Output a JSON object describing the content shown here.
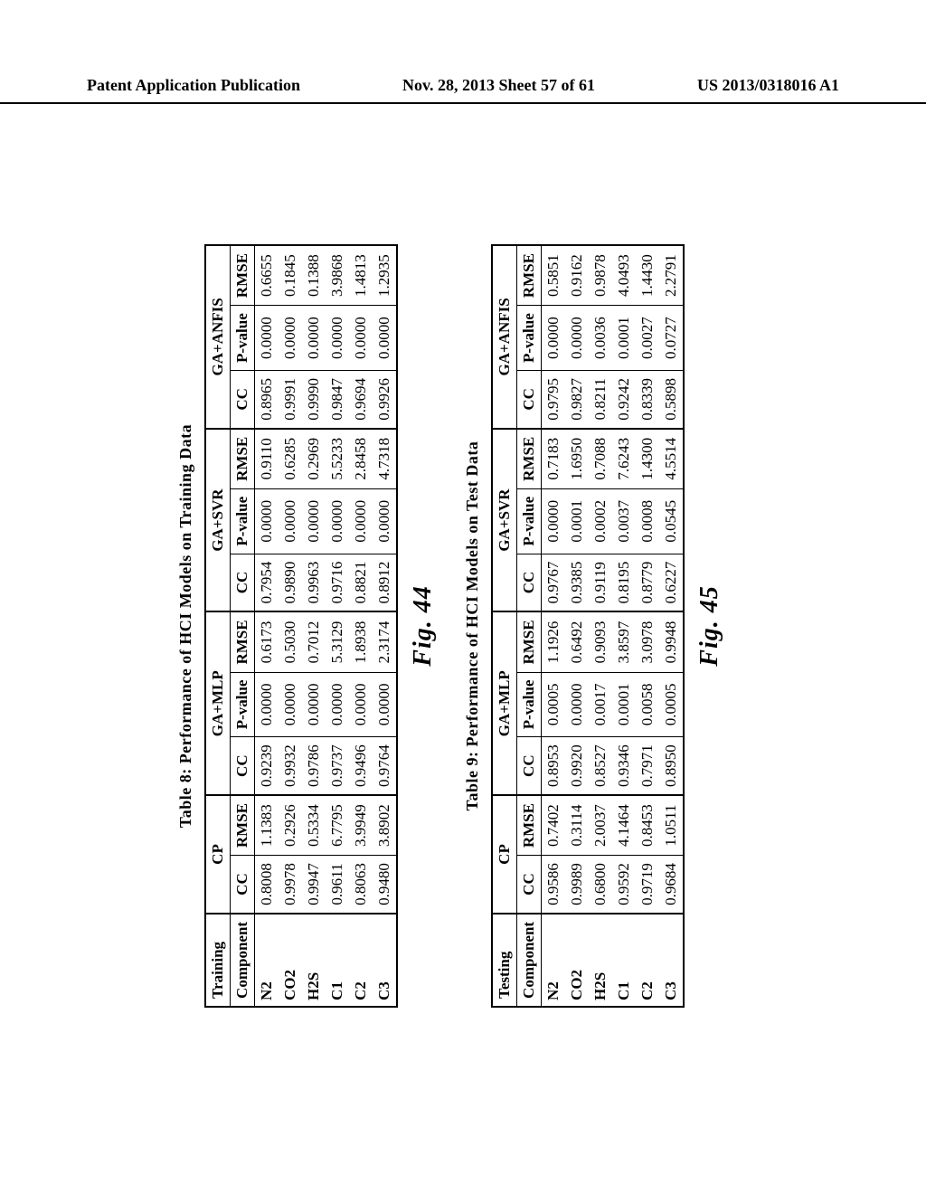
{
  "header": {
    "left": "Patent Application Publication",
    "center": "Nov. 28, 2013  Sheet 57 of 61",
    "right": "US 2013/0318016 A1"
  },
  "table8": {
    "caption": "Table  8: Performance of HCI Models on Training Data",
    "figure_label": "Fig. 44",
    "corner_label": "Training",
    "model_groups": [
      "CP",
      "GA+MLP",
      "GA+SVR",
      "GA+ANFIS"
    ],
    "subcols_cp": [
      "CC",
      "RMSE"
    ],
    "subcols_other": [
      "CC",
      "P-value",
      "RMSE"
    ],
    "row_header": "Component",
    "rows": [
      {
        "label": "N2",
        "vals": [
          "0.8008",
          "1.1383",
          "0.9239",
          "0.0000",
          "0.6173",
          "0.7954",
          "0.0000",
          "0.9110",
          "0.8965",
          "0.0000",
          "0.6655"
        ]
      },
      {
        "label": "CO2",
        "vals": [
          "0.9978",
          "0.2926",
          "0.9932",
          "0.0000",
          "0.5030",
          "0.9890",
          "0.0000",
          "0.6285",
          "0.9991",
          "0.0000",
          "0.1845"
        ]
      },
      {
        "label": "H2S",
        "vals": [
          "0.9947",
          "0.5334",
          "0.9786",
          "0.0000",
          "0.7012",
          "0.9963",
          "0.0000",
          "0.2969",
          "0.9990",
          "0.0000",
          "0.1388"
        ]
      },
      {
        "label": "C1",
        "vals": [
          "0.9611",
          "6.7795",
          "0.9737",
          "0.0000",
          "5.3129",
          "0.9716",
          "0.0000",
          "5.5233",
          "0.9847",
          "0.0000",
          "3.9868"
        ]
      },
      {
        "label": "C2",
        "vals": [
          "0.8063",
          "3.9949",
          "0.9496",
          "0.0000",
          "1.8938",
          "0.8821",
          "0.0000",
          "2.8458",
          "0.9694",
          "0.0000",
          "1.4813"
        ]
      },
      {
        "label": "C3",
        "vals": [
          "0.9480",
          "3.8902",
          "0.9764",
          "0.0000",
          "2.3174",
          "0.8912",
          "0.0000",
          "4.7318",
          "0.9926",
          "0.0000",
          "1.2935"
        ]
      }
    ]
  },
  "table9": {
    "caption": "Table  9: Performance of HCI Models on Test Data",
    "figure_label": "Fig. 45",
    "corner_label": "Testing",
    "model_groups": [
      "CP",
      "GA+MLP",
      "GA+SVR",
      "GA+ANFIS"
    ],
    "subcols_cp": [
      "CC",
      "RMSE"
    ],
    "subcols_other": [
      "CC",
      "P-value",
      "RMSE"
    ],
    "row_header": "Component",
    "rows": [
      {
        "label": "N2",
        "vals": [
          "0.9586",
          "0.7402",
          "0.8953",
          "0.0005",
          "1.1926",
          "0.9767",
          "0.0000",
          "0.7183",
          "0.9795",
          "0.0000",
          "0.5851"
        ]
      },
      {
        "label": "CO2",
        "vals": [
          "0.9989",
          "0.3114",
          "0.9920",
          "0.0000",
          "0.6492",
          "0.9385",
          "0.0001",
          "1.6950",
          "0.9827",
          "0.0000",
          "0.9162"
        ]
      },
      {
        "label": "H2S",
        "vals": [
          "0.6800",
          "2.0037",
          "0.8527",
          "0.0017",
          "0.9093",
          "0.9119",
          "0.0002",
          "0.7088",
          "0.8211",
          "0.0036",
          "0.9878"
        ]
      },
      {
        "label": "C1",
        "vals": [
          "0.9592",
          "4.1464",
          "0.9346",
          "0.0001",
          "3.8597",
          "0.8195",
          "0.0037",
          "7.6243",
          "0.9242",
          "0.0001",
          "4.0493"
        ]
      },
      {
        "label": "C2",
        "vals": [
          "0.9719",
          "0.8453",
          "0.7971",
          "0.0058",
          "3.0978",
          "0.8779",
          "0.0008",
          "1.4300",
          "0.8339",
          "0.0027",
          "1.4430"
        ]
      },
      {
        "label": "C3",
        "vals": [
          "0.9684",
          "1.0511",
          "0.8950",
          "0.0005",
          "0.9948",
          "0.6227",
          "0.0545",
          "4.5514",
          "0.5898",
          "0.0727",
          "2.2791"
        ]
      }
    ]
  },
  "style": {
    "font_family": "Times New Roman",
    "text_color": "#000000",
    "background_color": "#ffffff",
    "border_color": "#000000",
    "caption_fontsize": 18,
    "body_fontsize": 17,
    "figlabel_fontsize": 28
  }
}
